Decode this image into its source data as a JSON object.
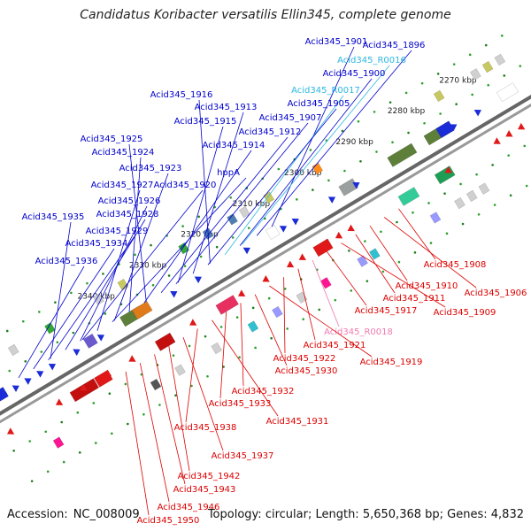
{
  "title": "Candidatus Koribacter versatilis Ellin345, complete genome",
  "footer": {
    "accession_label": "Accession:",
    "accession": "NC_008009",
    "topology_label": "Topology:",
    "topology": "circular;",
    "length_label": "Length:",
    "length": "5,650,368 bp;",
    "genes_label": "Genes:",
    "genes": "4,832"
  },
  "colors": {
    "forward_label": "#0000cc",
    "reverse_label": "#dd0000",
    "rna_forward_label": "#2cb7e0",
    "rna_reverse_label": "#f07ab0",
    "backbone": "#888888"
  },
  "ticks": [
    "2270 kbp",
    "2280 kbp",
    "2290 kbp",
    "2300 kbp",
    "2310 kbp",
    "2320 kbp",
    "2330 kbp",
    "2340 kbp"
  ],
  "labels_forward": [
    {
      "text": "Acid345_1901"
    },
    {
      "text": "Acid345_1896"
    },
    {
      "text": "Acid345_R0016",
      "type": "rna"
    },
    {
      "text": "Acid345_1900"
    },
    {
      "text": "Acid345_R0017",
      "type": "rna"
    },
    {
      "text": "Acid345_1916"
    },
    {
      "text": "Acid345_1905"
    },
    {
      "text": "Acid345_1913"
    },
    {
      "text": "Acid345_1915"
    },
    {
      "text": "Acid345_1907"
    },
    {
      "text": "Acid345_1912"
    },
    {
      "text": "Acid345_1925"
    },
    {
      "text": "Acid345_1914"
    },
    {
      "text": "Acid345_1924"
    },
    {
      "text": "Acid345_1923"
    },
    {
      "text": "hppA"
    },
    {
      "text": "Acid345_1927"
    },
    {
      "text": "Acid345_1920"
    },
    {
      "text": "Acid345_1926"
    },
    {
      "text": "Acid345_1928"
    },
    {
      "text": "Acid345_1935"
    },
    {
      "text": "Acid345_1929"
    },
    {
      "text": "Acid345_1934"
    },
    {
      "text": "Acid345_1936"
    }
  ],
  "labels_reverse": [
    {
      "text": "Acid345_1908"
    },
    {
      "text": "Acid345_1906"
    },
    {
      "text": "Acid345_1910"
    },
    {
      "text": "Acid345_1911"
    },
    {
      "text": "Acid345_1909"
    },
    {
      "text": "Acid345_1917"
    },
    {
      "text": "Acid345_R0018",
      "type": "rna"
    },
    {
      "text": "Acid345_1921"
    },
    {
      "text": "Acid345_1922"
    },
    {
      "text": "Acid345_1919"
    },
    {
      "text": "Acid345_1930"
    },
    {
      "text": "Acid345_1932"
    },
    {
      "text": "Acid345_1933"
    },
    {
      "text": "Acid345_1931"
    },
    {
      "text": "Acid345_1938"
    },
    {
      "text": "Acid345_1937"
    },
    {
      "text": "Acid345_1942"
    },
    {
      "text": "Acid345_1943"
    },
    {
      "text": "Acid345_1946"
    },
    {
      "text": "Acid345_1950"
    }
  ]
}
